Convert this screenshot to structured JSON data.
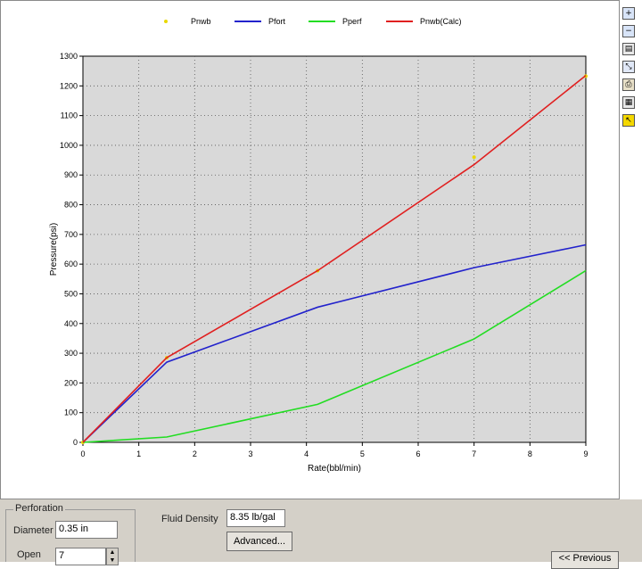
{
  "chart_data": {
    "type": "line",
    "xlabel": "Rate(bbl/min)",
    "ylabel": "Pressure(psi)",
    "xlim": [
      0,
      9
    ],
    "ylim": [
      0,
      1300
    ],
    "x_ticks": [
      "0",
      "1",
      "2",
      "3",
      "4",
      "5",
      "6",
      "7",
      "8",
      "9"
    ],
    "y_ticks": [
      "0",
      "100",
      "200",
      "300",
      "400",
      "500",
      "600",
      "700",
      "800",
      "900",
      "1000",
      "1100",
      "1200",
      "1300"
    ],
    "grid": true,
    "legend_position": "top",
    "series": [
      {
        "name": "Pnwb",
        "kind": "points",
        "color": "#e8d800",
        "x": [
          0,
          1.5,
          4.2,
          7.0,
          9.0
        ],
        "y": [
          0,
          285,
          578,
          960,
          1233
        ]
      },
      {
        "name": "Pfort",
        "kind": "line",
        "color": "#2222cc",
        "x": [
          0,
          1.5,
          4.2,
          7.0,
          9.0
        ],
        "y": [
          0,
          270,
          455,
          588,
          665
        ]
      },
      {
        "name": "Pperf",
        "kind": "line",
        "color": "#22dd22",
        "x": [
          0,
          1.5,
          4.2,
          7.0,
          9.0
        ],
        "y": [
          0,
          18,
          128,
          348,
          578
        ]
      },
      {
        "name": "Pnwb(Calc)",
        "kind": "line",
        "color": "#e02020",
        "x": [
          0,
          1.5,
          4.2,
          7.0,
          9.0
        ],
        "y": [
          0,
          285,
          578,
          935,
          1235
        ]
      }
    ]
  },
  "toolbar": {
    "items": [
      {
        "icon": "zoom-in-icon",
        "glyph": "+"
      },
      {
        "icon": "zoom-out-icon",
        "glyph": "−"
      },
      {
        "icon": "chart-properties-icon",
        "glyph": "▤"
      },
      {
        "icon": "axis-icon",
        "glyph": "⤡"
      },
      {
        "icon": "print-icon",
        "glyph": "⎙"
      },
      {
        "icon": "data-table-icon",
        "glyph": "▦"
      },
      {
        "icon": "pointer-icon",
        "glyph": "↖"
      }
    ]
  },
  "form": {
    "perforation_label": "Perforation",
    "diameter_label": "Diameter",
    "diameter_value": "0.35 in",
    "open_label": "Open",
    "open_value": "7",
    "fluid_density_label": "Fluid Density",
    "fluid_density_value": "8.35 lb/gal",
    "advanced_label": "Advanced...",
    "previous_label": "<< Previous"
  }
}
